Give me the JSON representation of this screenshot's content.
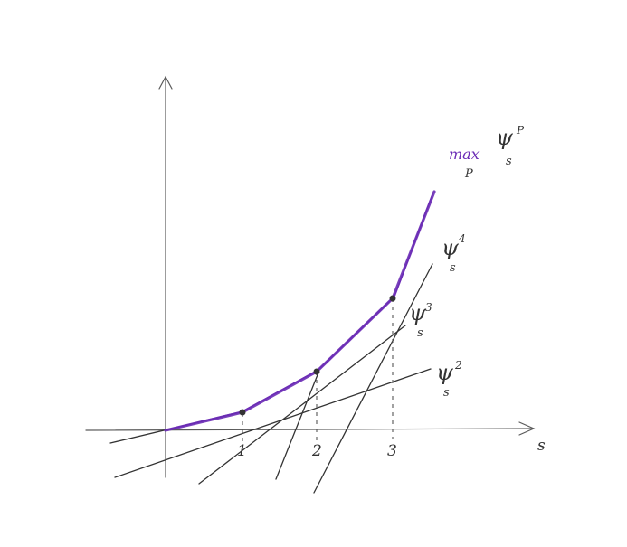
{
  "colors": {
    "envelope": "#6a2bb5",
    "ink": "#333333",
    "axis": "#5a5a5a"
  },
  "axis": {
    "x_label": "s"
  },
  "ticks": [
    "1",
    "2",
    "3"
  ],
  "functions": [
    {
      "symbol": "ψ",
      "superscript": "2",
      "subscript": "s"
    },
    {
      "symbol": "ψ",
      "superscript": "3",
      "subscript": "s"
    },
    {
      "symbol": "ψ",
      "superscript": "4",
      "subscript": "s"
    }
  ],
  "envelope_label": {
    "max": "max",
    "max_subscript": "P",
    "symbol": "ψ",
    "superscript": "P",
    "subscript": "s"
  }
}
